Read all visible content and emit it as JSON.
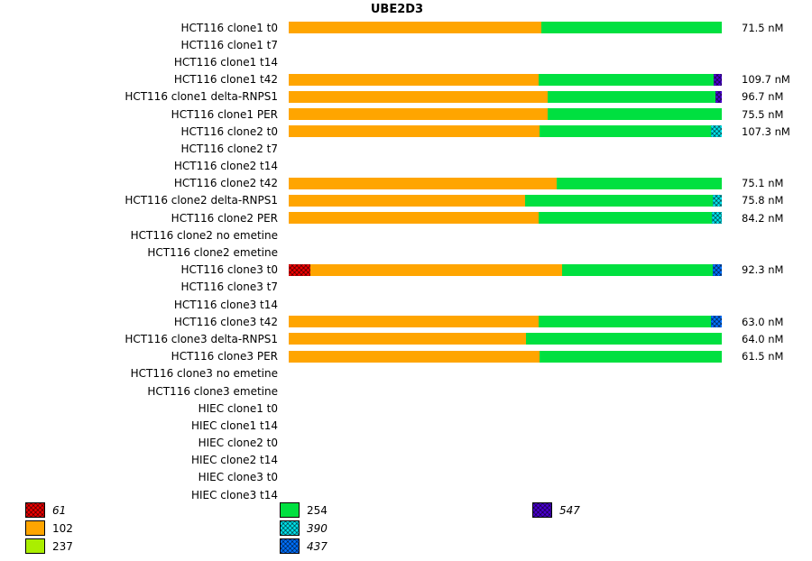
{
  "title": "UBE2D3",
  "chart_data": {
    "type": "bar",
    "orientation": "horizontal",
    "stacked": true,
    "title": "UBE2D3",
    "value_unit": "nM",
    "series_meta": {
      "61": {
        "color": "#ee0000",
        "hatch": true
      },
      "102": {
        "color": "#ffa500",
        "hatch": false
      },
      "237": {
        "color": "#aaee00",
        "hatch": false
      },
      "254": {
        "color": "#00e040",
        "hatch": false
      },
      "390": {
        "color": "#00dfe8",
        "hatch": true
      },
      "437": {
        "color": "#0070ff",
        "hatch": true
      },
      "547": {
        "color": "#4a00d0",
        "hatch": true
      }
    },
    "rows": [
      {
        "label": "HCT116 clone1 t0",
        "value": "71.5 nM",
        "segments": [
          {
            "key": "102",
            "pct": 58.3
          },
          {
            "key": "254",
            "pct": 41.7
          }
        ]
      },
      {
        "label": "HCT116 clone1 t7",
        "value": "",
        "segments": []
      },
      {
        "label": "HCT116 clone1 t14",
        "value": "",
        "segments": []
      },
      {
        "label": "HCT116 clone1 t42",
        "value": "109.7 nM",
        "segments": [
          {
            "key": "102",
            "pct": 57.7
          },
          {
            "key": "254",
            "pct": 40.4
          },
          {
            "key": "547",
            "pct": 1.9
          }
        ]
      },
      {
        "label": "HCT116 clone1 delta-RNPS1",
        "value": "96.7 nM",
        "segments": [
          {
            "key": "102",
            "pct": 59.8
          },
          {
            "key": "254",
            "pct": 38.7
          },
          {
            "key": "547",
            "pct": 1.5
          }
        ]
      },
      {
        "label": "HCT116 clone1 PER",
        "value": "75.5 nM",
        "segments": [
          {
            "key": "102",
            "pct": 59.8
          },
          {
            "key": "254",
            "pct": 40.2
          }
        ]
      },
      {
        "label": "HCT116 clone2 t0",
        "value": "107.3 nM",
        "segments": [
          {
            "key": "102",
            "pct": 57.9
          },
          {
            "key": "254",
            "pct": 39.6
          },
          {
            "key": "390",
            "pct": 2.5
          }
        ]
      },
      {
        "label": "HCT116 clone2 t7",
        "value": "",
        "segments": []
      },
      {
        "label": "HCT116 clone2 t14",
        "value": "",
        "segments": []
      },
      {
        "label": "HCT116 clone2 t42",
        "value": "75.1 nM",
        "segments": [
          {
            "key": "102",
            "pct": 61.9
          },
          {
            "key": "254",
            "pct": 38.1
          }
        ]
      },
      {
        "label": "HCT116 clone2 delta-RNPS1",
        "value": "75.8 nM",
        "segments": [
          {
            "key": "102",
            "pct": 54.6
          },
          {
            "key": "254",
            "pct": 43.3
          },
          {
            "key": "390",
            "pct": 2.1
          }
        ]
      },
      {
        "label": "HCT116 clone2 PER",
        "value": "84.2 nM",
        "segments": [
          {
            "key": "102",
            "pct": 57.7
          },
          {
            "key": "254",
            "pct": 40.0
          },
          {
            "key": "390",
            "pct": 2.3
          }
        ]
      },
      {
        "label": "HCT116 clone2 no emetine",
        "value": "",
        "segments": []
      },
      {
        "label": "HCT116 clone2 emetine",
        "value": "",
        "segments": []
      },
      {
        "label": "HCT116 clone3 t0",
        "value": "92.3 nM",
        "segments": [
          {
            "key": "61",
            "pct": 5.0
          },
          {
            "key": "102",
            "pct": 58.1
          },
          {
            "key": "254",
            "pct": 34.8
          },
          {
            "key": "437",
            "pct": 2.1
          }
        ]
      },
      {
        "label": "HCT116 clone3 t7",
        "value": "",
        "segments": []
      },
      {
        "label": "HCT116 clone3 t14",
        "value": "",
        "segments": []
      },
      {
        "label": "HCT116 clone3 t42",
        "value": "63.0 nM",
        "segments": [
          {
            "key": "102",
            "pct": 57.7
          },
          {
            "key": "254",
            "pct": 39.8
          },
          {
            "key": "437",
            "pct": 2.5
          }
        ]
      },
      {
        "label": "HCT116 clone3 delta-RNPS1",
        "value": "64.0 nM",
        "segments": [
          {
            "key": "102",
            "pct": 54.8
          },
          {
            "key": "254",
            "pct": 45.2
          }
        ]
      },
      {
        "label": "HCT116 clone3 PER",
        "value": "61.5 nM",
        "segments": [
          {
            "key": "102",
            "pct": 57.9
          },
          {
            "key": "254",
            "pct": 42.1
          }
        ]
      },
      {
        "label": "HCT116 clone3 no emetine",
        "value": "",
        "segments": []
      },
      {
        "label": "HCT116 clone3 emetine",
        "value": "",
        "segments": []
      },
      {
        "label": "HIEC clone1 t0",
        "value": "",
        "segments": []
      },
      {
        "label": "HIEC clone1 t14",
        "value": "",
        "segments": []
      },
      {
        "label": "HIEC clone2 t0",
        "value": "",
        "segments": []
      },
      {
        "label": "HIEC clone2 t14",
        "value": "",
        "segments": []
      },
      {
        "label": "HIEC clone3 t0",
        "value": "",
        "segments": []
      },
      {
        "label": "HIEC clone3 t14",
        "value": "",
        "segments": []
      }
    ],
    "legend_columns": [
      [
        "61",
        "102",
        "237"
      ],
      [
        "254",
        "390",
        "437"
      ],
      [
        "547"
      ]
    ]
  }
}
